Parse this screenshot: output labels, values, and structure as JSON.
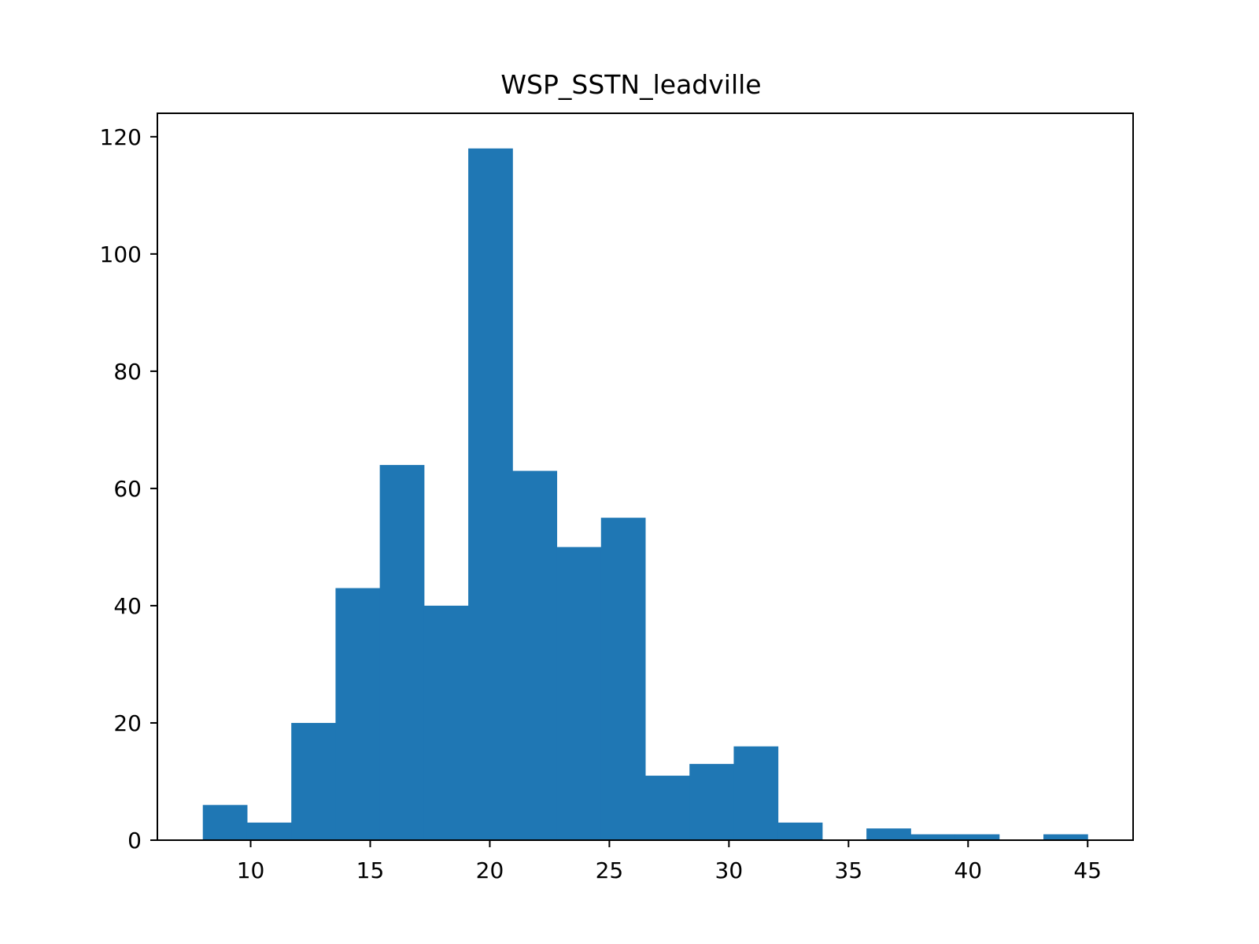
{
  "chart_data": {
    "type": "bar",
    "title": "WSP_SSTN_leadville",
    "xlabel": "",
    "ylabel": "",
    "xlim": [
      6.1,
      46.9
    ],
    "ylim": [
      0,
      124
    ],
    "xticks": [
      10,
      15,
      20,
      25,
      30,
      35,
      40,
      45
    ],
    "yticks": [
      0,
      20,
      40,
      60,
      80,
      100,
      120
    ],
    "bin_start": 8,
    "bin_width": 1.85,
    "values": [
      6,
      3,
      20,
      43,
      64,
      40,
      118,
      63,
      50,
      55,
      11,
      13,
      16,
      3,
      0,
      2,
      1,
      1,
      0,
      1
    ],
    "bar_color": "#1f77b4",
    "grid": false,
    "legend": "none"
  }
}
